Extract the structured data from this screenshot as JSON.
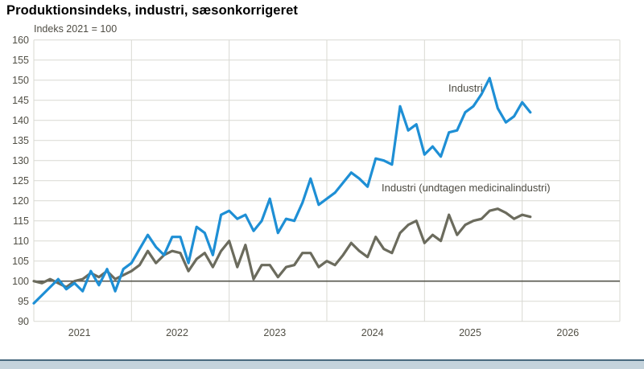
{
  "title": "Produktionsindeks, industri, sæsonkorrigeret",
  "subtitle": "Indeks 2021 = 100",
  "series_labels": {
    "industri": "Industri",
    "ex_medicinal": "Industri (undtagen medicinalindustri)"
  },
  "colors": {
    "industri_line": "#1e8fd5",
    "ex_medicinal_line": "#6b6b5d",
    "grid_line": "#d9d9d2",
    "reference_line": "#54544b",
    "axis_text": "#514f45",
    "title_text": "#000000",
    "footer_divider": "#48697e",
    "footer_band": "#c4d3dc",
    "background": "#ffffff"
  },
  "y_axis": {
    "min": 90,
    "max": 160,
    "step": 5,
    "reference_value": 100,
    "ticks": [
      160,
      155,
      150,
      145,
      140,
      135,
      130,
      125,
      120,
      115,
      110,
      105,
      100,
      95,
      90
    ]
  },
  "x_axis": {
    "year_labels": [
      "2021",
      "2022",
      "2023",
      "2024",
      "2025",
      "2026"
    ]
  },
  "chart_data": {
    "type": "line",
    "title": "Produktionsindeks, industri, sæsonkorrigeret",
    "subtitle": "Indeks 2021 = 100",
    "ylabel": "Indeks 2021 = 100",
    "ylim": [
      90,
      160
    ],
    "xlim_years": [
      2021,
      2027
    ],
    "grid": true,
    "reference_line": 100,
    "legend_position": "inline-labels",
    "x": [
      "2021-01",
      "2021-02",
      "2021-03",
      "2021-04",
      "2021-05",
      "2021-06",
      "2021-07",
      "2021-08",
      "2021-09",
      "2021-10",
      "2021-11",
      "2021-12",
      "2022-01",
      "2022-02",
      "2022-03",
      "2022-04",
      "2022-05",
      "2022-06",
      "2022-07",
      "2022-08",
      "2022-09",
      "2022-10",
      "2022-11",
      "2022-12",
      "2023-01",
      "2023-02",
      "2023-03",
      "2023-04",
      "2023-05",
      "2023-06",
      "2023-07",
      "2023-08",
      "2023-09",
      "2023-10",
      "2023-11",
      "2023-12",
      "2024-01",
      "2024-02",
      "2024-03",
      "2024-04",
      "2024-05",
      "2024-06",
      "2024-07",
      "2024-08",
      "2024-09",
      "2024-10",
      "2024-11",
      "2024-12",
      "2025-01",
      "2025-02",
      "2025-03",
      "2025-04",
      "2025-05",
      "2025-06",
      "2025-07",
      "2025-08",
      "2025-09",
      "2025-10",
      "2025-11",
      "2025-12",
      "2026-01",
      "2026-02"
    ],
    "series": [
      {
        "name": "Industri",
        "color": "#1e8fd5",
        "values": [
          94.5,
          96.5,
          98.5,
          100.5,
          98,
          99.5,
          97.5,
          102.5,
          99,
          103,
          97.5,
          103,
          104.5,
          108,
          111.5,
          108.5,
          106.5,
          111,
          111,
          104.5,
          113.5,
          112,
          106.5,
          116.5,
          117.5,
          115.5,
          116.5,
          112.5,
          115,
          120.5,
          112,
          115.5,
          115,
          119.5,
          125.5,
          119,
          120.5,
          122,
          124.5,
          127,
          125.5,
          123.5,
          130.5,
          130,
          129,
          143.5,
          137.5,
          139,
          131.5,
          133.5,
          131,
          137,
          137.5,
          142,
          143.5,
          146.5,
          150.5,
          143,
          139.5,
          141,
          144.5,
          142
        ]
      },
      {
        "name": "Industri (undtagen medicinalindustri)",
        "color": "#6b6b5d",
        "values": [
          100,
          99.5,
          100.5,
          99.5,
          98.5,
          100,
          100.5,
          102,
          101,
          102.5,
          100.5,
          101.5,
          102.5,
          104,
          107.5,
          104.5,
          106.5,
          107.5,
          107,
          102.5,
          105.5,
          107,
          103.5,
          107.5,
          110,
          103.5,
          109,
          100.5,
          104,
          104,
          101,
          103.5,
          104,
          107,
          107,
          103.5,
          105,
          104,
          106.5,
          109.5,
          107.5,
          106,
          111,
          108,
          107,
          112,
          114,
          115,
          109.5,
          111.5,
          110,
          116.5,
          111.5,
          114,
          115,
          115.5,
          117.5,
          118,
          117,
          115.5,
          116.5,
          116
        ]
      }
    ]
  }
}
